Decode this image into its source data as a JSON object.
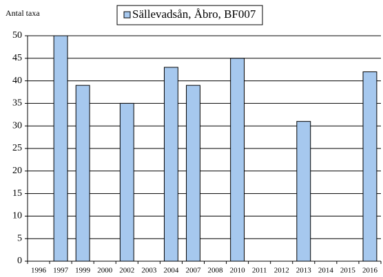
{
  "chart_data": {
    "type": "bar",
    "y_label": "Antal taxa",
    "categories": [
      "1996",
      "1997",
      "1999",
      "2000",
      "2002",
      "2003",
      "2004",
      "2007",
      "2008",
      "2010",
      "2011",
      "2012",
      "2013",
      "2014",
      "2015",
      "2016"
    ],
    "series": [
      {
        "name": "Sällevadsån, Åbro, BF007",
        "color": "#a6c8ee",
        "values": [
          null,
          50,
          39,
          null,
          35,
          null,
          43,
          39,
          null,
          45,
          null,
          null,
          31,
          null,
          null,
          42
        ]
      }
    ],
    "ylim": [
      0,
      50
    ],
    "yticks": [
      0,
      5,
      10,
      15,
      20,
      25,
      30,
      35,
      40,
      45,
      50
    ],
    "grid": true,
    "legend": "top"
  }
}
